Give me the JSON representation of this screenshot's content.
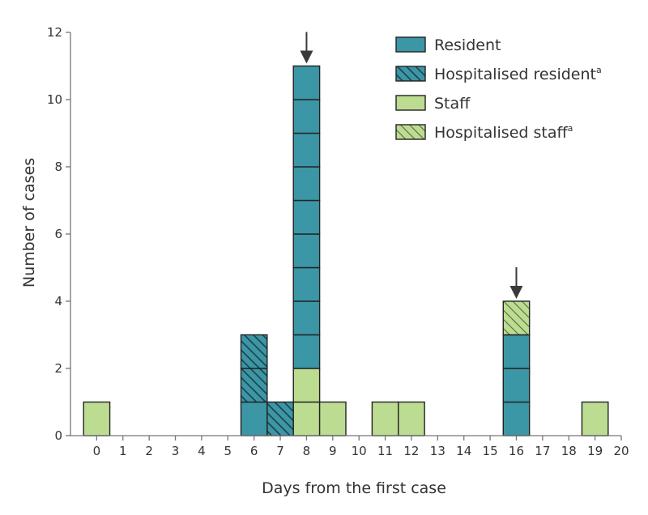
{
  "chart_data": {
    "type": "bar",
    "stacked": true,
    "unit": "case",
    "xlabel": "Days from the first case",
    "ylabel": "Number of cases",
    "ylim": [
      0,
      12
    ],
    "yticks": [
      0,
      2,
      4,
      6,
      8,
      10,
      12
    ],
    "xticks": [
      0,
      1,
      2,
      3,
      4,
      5,
      6,
      7,
      8,
      9,
      10,
      11,
      12,
      13,
      14,
      15,
      16,
      17,
      18,
      19,
      20
    ],
    "series": [
      {
        "name": "Resident",
        "superscript": "",
        "key": "resident",
        "days": [
          6,
          8,
          16
        ],
        "values": [
          1,
          9,
          3
        ]
      },
      {
        "name": "Hospitalised resident",
        "superscript": "a",
        "key": "hosp_resident",
        "days": [
          6,
          7
        ],
        "values": [
          2,
          1
        ]
      },
      {
        "name": "Staff",
        "superscript": "",
        "key": "staff",
        "days": [
          0,
          8,
          9,
          11,
          12,
          19
        ],
        "values": [
          1,
          2,
          1,
          1,
          1,
          1
        ]
      },
      {
        "name": "Hospitalised staff",
        "superscript": "a",
        "key": "hosp_staff",
        "days": [
          16
        ],
        "values": [
          1
        ]
      }
    ],
    "stacks": [
      {
        "day": 0,
        "segments": [
          "staff"
        ]
      },
      {
        "day": 6,
        "segments": [
          "resident",
          "hosp_resident",
          "hosp_resident"
        ]
      },
      {
        "day": 7,
        "segments": [
          "hosp_resident"
        ]
      },
      {
        "day": 8,
        "segments": [
          "staff",
          "staff",
          "resident",
          "resident",
          "resident",
          "resident",
          "resident",
          "resident",
          "resident",
          "resident",
          "resident"
        ]
      },
      {
        "day": 9,
        "segments": [
          "staff"
        ]
      },
      {
        "day": 11,
        "segments": [
          "staff"
        ]
      },
      {
        "day": 12,
        "segments": [
          "staff"
        ]
      },
      {
        "day": 16,
        "segments": [
          "resident",
          "resident",
          "resident",
          "hosp_staff"
        ]
      },
      {
        "day": 19,
        "segments": [
          "staff"
        ]
      }
    ],
    "arrows_at_days": [
      8,
      16
    ],
    "legend_position": "top-right",
    "grid": false
  },
  "colors": {
    "resident": "#3b96a5",
    "staff": "#bcdc92",
    "outline": "#222222",
    "axis": "#777777",
    "arrow": "#3a3a3a",
    "text": "#333333"
  }
}
